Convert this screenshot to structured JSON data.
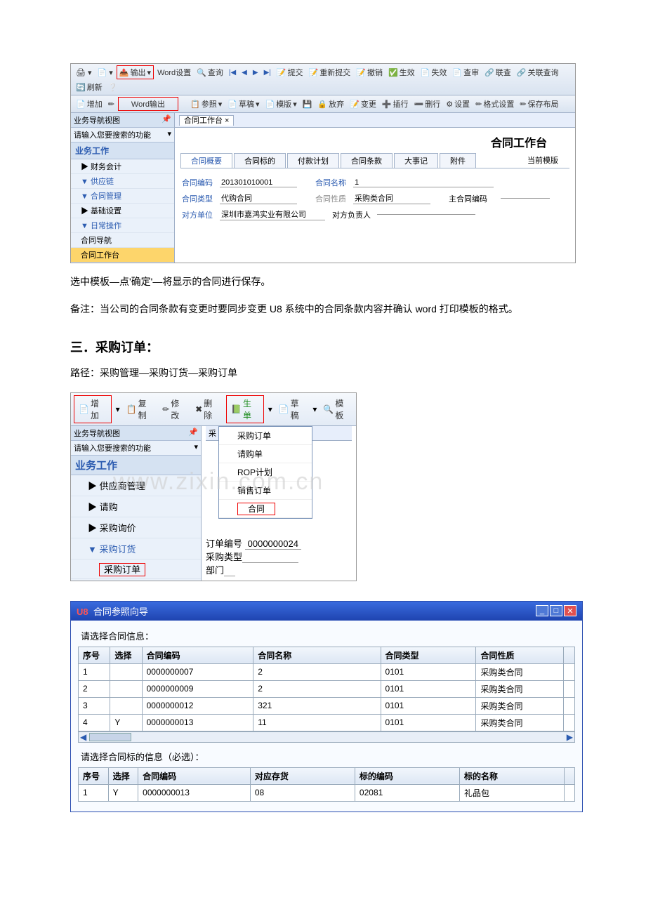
{
  "shot1": {
    "toolbar_top": [
      "输出",
      "Word设置",
      "查询",
      "◀",
      "◀",
      "▶",
      "▶",
      "提交",
      "重新提交",
      "撤销",
      "生效",
      "失效",
      "查审",
      "联查",
      "关联查询",
      "刷新",
      "?"
    ],
    "toolbar2_left": [
      "增加",
      "Word输出"
    ],
    "toolbar2_right": [
      "参照",
      "草稿",
      "模版",
      "□",
      "放弃",
      "变更",
      "插行",
      "删行",
      "设置",
      "格式设置",
      "保存布局"
    ],
    "side_title": "业务导航视图",
    "side_search": "请输入您要搜索的功能",
    "side_head": "业务工作",
    "side_items": [
      "▶ 财务会计",
      "▼ 供应链",
      "  ▼ 合同管理",
      "    ▶ 基础设置",
      "    ▼ 日常操作",
      "      合同导航",
      "      合同工作台"
    ],
    "tab": "合同工作台 ×",
    "content_title": "合同工作台",
    "subtabs": [
      "合同概要",
      "合同标的",
      "付款计划",
      "合同条款",
      "大事记",
      "附件"
    ],
    "subtab_right": "当前模版",
    "fields": {
      "code_label": "合同编码",
      "code": "201301010001",
      "name_label": "合同名称",
      "name": "1",
      "type_label": "合同类型",
      "type": "代购合同",
      "nature_label": "合同性质",
      "nature": "采购类合同",
      "main_label": "主合同编码",
      "party_label": "对方单位",
      "party": "深圳市嘉鸿实业有限公司",
      "person_label": "对方负责人"
    }
  },
  "doc_text1": "选中模板—点'确定'—将显示的合同进行保存。",
  "doc_text2": "备注：当公司的合同条款有变更时要同步变更 U8 系统中的合同条款内容并确认 word 打印模板的格式。",
  "section3_title": "三．采购订单：",
  "section3_path": "路径：采购管理—采购订货—采购订单",
  "shot2": {
    "toolbar": [
      "增加",
      "复制",
      "修改",
      "删除",
      "生单",
      "草稿",
      "模板"
    ],
    "side_title": "业务导航视图",
    "side_search": "请输入您要搜索的功能",
    "side_head": "业务工作",
    "side_items": [
      "▶  供应商管理",
      "▶  请购",
      "▶  采购询价",
      "▼  采购订货",
      "      采购订单"
    ],
    "menu": [
      "采购订单",
      "请购单",
      "ROP计划",
      "销售订单",
      "合同"
    ],
    "below": {
      "order_no_label": "订单编号",
      "order_no": "0000000024",
      "ptype_label": "采购类型",
      "dept_label": "部门"
    }
  },
  "watermark": "www.zixin.com.cn",
  "shot3": {
    "title": "合同参照向导",
    "label1": "请选择合同信息：",
    "headers1": [
      "序号",
      "选择",
      "合同编码",
      "合同名称",
      "合同类型",
      "合同性质"
    ],
    "rows1": [
      [
        "1",
        "",
        "0000000007",
        "2",
        "0101",
        "采购类合同"
      ],
      [
        "2",
        "",
        "0000000009",
        "2",
        "0101",
        "采购类合同"
      ],
      [
        "3",
        "",
        "0000000012",
        "321",
        "0101",
        "采购类合同"
      ],
      [
        "4",
        "Y",
        "0000000013",
        "11",
        "0101",
        "采购类合同"
      ]
    ],
    "label2": "请选择合同标的信息（必选）：",
    "headers2": [
      "序号",
      "选择",
      "合同编码",
      "对应存货",
      "标的编码",
      "标的名称"
    ],
    "rows2": [
      [
        "1",
        "Y",
        "0000000013",
        "08",
        "02081",
        "礼品包"
      ]
    ]
  }
}
